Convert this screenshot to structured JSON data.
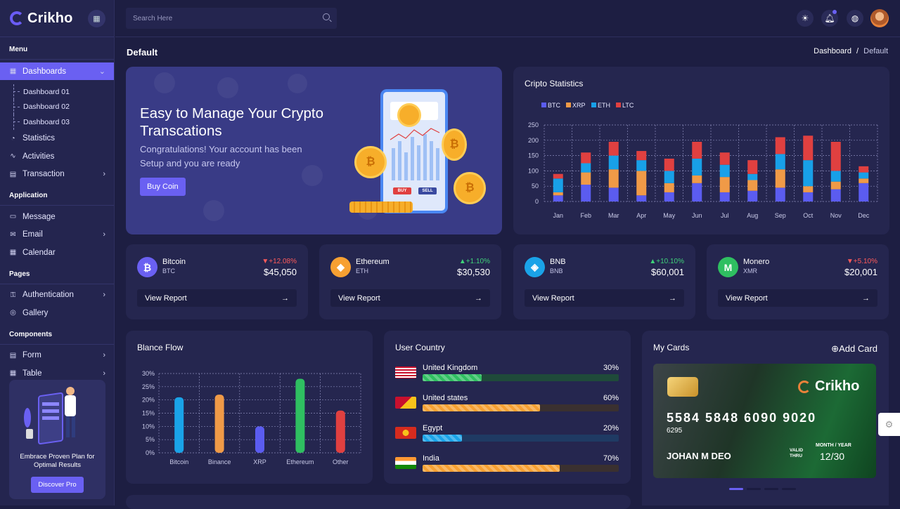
{
  "brand": {
    "name": "Crikho"
  },
  "search": {
    "placeholder": "Search Here"
  },
  "sidebar": {
    "sections": [
      "Menu",
      "Application",
      "Pages",
      "Components"
    ],
    "dashboards": "Dashboards",
    "subs": [
      "Dashboard 01",
      "Dashboard 02",
      "Dashboard 03"
    ],
    "items": {
      "statistics": "Statistics",
      "activities": "Activities",
      "transaction": "Transaction",
      "message": "Message",
      "email": "Email",
      "calendar": "Calendar",
      "authentication": "Authentication",
      "gallery": "Gallery",
      "form": "Form",
      "table": "Table"
    },
    "promo": {
      "text": "Embrace Proven Plan for Optimal Results",
      "button": "Discover Pro"
    }
  },
  "page": {
    "title": "Default",
    "breadcrumb": {
      "parent": "Dashboard",
      "sep": "/",
      "current": "Default"
    }
  },
  "hero": {
    "title": "Easy to Manage Your Crypto Transcations",
    "text": "Congratulations! Your account has been Setup and you are ready",
    "button": "Buy Coin",
    "phone_buy": "BUY",
    "phone_sell": "SELL"
  },
  "crypto_stats": {
    "title": "Cripto Statistics"
  },
  "coins": [
    {
      "name": "Bitcoin",
      "symbol": "BTC",
      "change": "+12.08%",
      "dir": "dn",
      "value": "$45,050",
      "link": "View Report",
      "color": "#6a60f2",
      "glyph": "₿"
    },
    {
      "name": "Ethereum",
      "symbol": "ETH",
      "change": "+1.10%",
      "dir": "up",
      "value": "$30,530",
      "link": "View Report",
      "color": "#f7a032",
      "glyph": "◆"
    },
    {
      "name": "BNB",
      "symbol": "BNB",
      "change": "+10.10%",
      "dir": "up",
      "value": "$60,001",
      "link": "View Report",
      "color": "#1aa3e8",
      "glyph": "◈"
    },
    {
      "name": "Monero",
      "symbol": "XMR",
      "change": "+5.10%",
      "dir": "dn",
      "value": "$20,001",
      "link": "View Report",
      "color": "#2fbf61",
      "glyph": "M"
    }
  ],
  "balance": {
    "title": "Blance Flow"
  },
  "country": {
    "title": "User Country",
    "rows": [
      {
        "name": "United Kingdom",
        "pct": "30%",
        "value": 30,
        "color": "#2fbf61"
      },
      {
        "name": "United states",
        "pct": "60%",
        "value": 60,
        "color": "#f7a032"
      },
      {
        "name": "Egypt",
        "pct": "20%",
        "value": 20,
        "color": "#1aa3e8"
      },
      {
        "name": "India",
        "pct": "70%",
        "value": 70,
        "color": "#f7a032"
      }
    ]
  },
  "cards": {
    "title": "My Cards",
    "add": "Add Card",
    "number": "5584 5848 6090 9020",
    "sub": "6295",
    "holder": "JOHAN M DEO",
    "valid": "VALID",
    "thru": "THRU",
    "exp_label": "MONTH / YEAR",
    "exp": "12/30",
    "brand": "Crikho"
  },
  "chart_data": [
    {
      "type": "bar",
      "title": "Cripto Statistics",
      "stacked": true,
      "categories": [
        "Jan",
        "Feb",
        "Mar",
        "Apr",
        "May",
        "Jun",
        "Jul",
        "Aug",
        "Sep",
        "Oct",
        "Nov",
        "Dec"
      ],
      "ylim": [
        0,
        250
      ],
      "yticks": [
        0,
        50,
        100,
        150,
        200,
        250
      ],
      "grid": true,
      "legend": "top-left",
      "series": [
        {
          "name": "BTC",
          "color": "#5b5cf0",
          "values": [
            20,
            55,
            45,
            20,
            30,
            60,
            30,
            35,
            45,
            30,
            40,
            60
          ]
        },
        {
          "name": "XRP",
          "color": "#f09a47",
          "values": [
            10,
            40,
            60,
            80,
            30,
            25,
            50,
            35,
            60,
            20,
            25,
            15
          ]
        },
        {
          "name": "ETH",
          "color": "#18a0e8",
          "values": [
            45,
            30,
            45,
            35,
            40,
            55,
            40,
            20,
            50,
            85,
            35,
            20
          ]
        },
        {
          "name": "LTC",
          "color": "#e04040",
          "values": [
            15,
            35,
            45,
            30,
            40,
            55,
            40,
            45,
            55,
            80,
            95,
            20
          ]
        }
      ]
    },
    {
      "type": "bar",
      "title": "Blance Flow",
      "categories": [
        "Bitcoin",
        "Binance",
        "XRP",
        "Ethereum",
        "Other"
      ],
      "values": [
        21,
        22,
        10,
        28,
        16
      ],
      "colors": [
        "#1aa3e8",
        "#f09a47",
        "#5b5cf0",
        "#2fbf61",
        "#e04040"
      ],
      "ylim": [
        0,
        30
      ],
      "yticks": [
        "0%",
        "5%",
        "10%",
        "15%",
        "20%",
        "25%",
        "30%"
      ],
      "grid": true
    }
  ]
}
